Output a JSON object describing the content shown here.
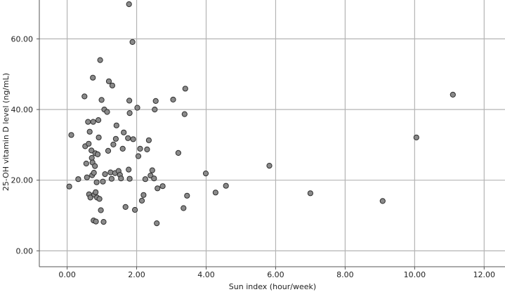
{
  "chart_data": {
    "type": "scatter",
    "xlabel": "Sun index (hour/week)",
    "ylabel": "25-OH vitamin D level (ng/mL)",
    "xlim": [
      -0.8,
      12.6
    ],
    "ylim": [
      -4.5,
      71
    ],
    "x_ticks": [
      0,
      2,
      4,
      6,
      8,
      10,
      12
    ],
    "y_ticks": [
      0,
      20,
      40,
      60
    ],
    "x_tick_labels": [
      "0.00",
      "2.00",
      "4.00",
      "6.00",
      "8.00",
      "10.00",
      "12.00"
    ],
    "y_tick_labels": [
      "0.00",
      "20.00",
      "40.00",
      "60.00"
    ],
    "grid": true,
    "legend": "none",
    "colors": {
      "point_fill": "#8a8a8a",
      "point_stroke": "#2e2e2e",
      "gridline": "#b4b4b4",
      "axis": "#555555"
    },
    "points": [
      [
        0.06,
        18.2
      ],
      [
        0.12,
        32.8
      ],
      [
        0.32,
        20.3
      ],
      [
        0.5,
        43.7
      ],
      [
        0.52,
        29.6
      ],
      [
        0.55,
        24.7
      ],
      [
        0.57,
        20.8
      ],
      [
        0.6,
        36.5
      ],
      [
        0.62,
        30.3
      ],
      [
        0.63,
        16.0
      ],
      [
        0.65,
        33.7
      ],
      [
        0.67,
        15.1
      ],
      [
        0.7,
        28.4
      ],
      [
        0.71,
        26.3
      ],
      [
        0.72,
        21.4
      ],
      [
        0.73,
        25.0
      ],
      [
        0.74,
        49.0
      ],
      [
        0.75,
        36.5
      ],
      [
        0.76,
        8.6
      ],
      [
        0.77,
        22.1
      ],
      [
        0.78,
        15.9
      ],
      [
        0.8,
        24.0
      ],
      [
        0.81,
        27.6
      ],
      [
        0.82,
        16.6
      ],
      [
        0.83,
        8.3
      ],
      [
        0.85,
        19.4
      ],
      [
        0.86,
        15.1
      ],
      [
        0.88,
        27.3
      ],
      [
        0.9,
        37.0
      ],
      [
        0.91,
        32.1
      ],
      [
        0.93,
        14.7
      ],
      [
        0.95,
        54.0
      ],
      [
        0.97,
        11.5
      ],
      [
        0.99,
        42.7
      ],
      [
        1.03,
        19.6
      ],
      [
        1.05,
        8.2
      ],
      [
        1.07,
        40.0
      ],
      [
        1.09,
        21.7
      ],
      [
        1.15,
        39.3
      ],
      [
        1.18,
        28.3
      ],
      [
        1.2,
        48.0
      ],
      [
        1.25,
        22.2
      ],
      [
        1.28,
        20.4
      ],
      [
        1.3,
        46.8
      ],
      [
        1.33,
        30.1
      ],
      [
        1.38,
        22.0
      ],
      [
        1.4,
        31.7
      ],
      [
        1.42,
        35.5
      ],
      [
        1.48,
        22.6
      ],
      [
        1.52,
        21.5
      ],
      [
        1.55,
        20.5
      ],
      [
        1.6,
        28.9
      ],
      [
        1.63,
        33.5
      ],
      [
        1.68,
        12.4
      ],
      [
        1.75,
        31.9
      ],
      [
        1.77,
        23.0
      ],
      [
        1.8,
        20.4
      ],
      [
        1.78,
        69.8
      ],
      [
        1.79,
        42.5
      ],
      [
        1.8,
        39.0
      ],
      [
        1.88,
        59.1
      ],
      [
        1.9,
        31.6
      ],
      [
        1.95,
        11.6
      ],
      [
        2.02,
        40.5
      ],
      [
        2.05,
        26.8
      ],
      [
        2.1,
        28.9
      ],
      [
        2.15,
        14.2
      ],
      [
        2.2,
        15.8
      ],
      [
        2.25,
        20.3
      ],
      [
        2.3,
        28.7
      ],
      [
        2.35,
        31.3
      ],
      [
        2.4,
        21.3
      ],
      [
        2.45,
        22.8
      ],
      [
        2.5,
        20.5
      ],
      [
        2.52,
        40.0
      ],
      [
        2.55,
        42.4
      ],
      [
        2.58,
        7.8
      ],
      [
        2.6,
        17.7
      ],
      [
        2.75,
        18.3
      ],
      [
        3.05,
        42.8
      ],
      [
        3.2,
        27.7
      ],
      [
        3.35,
        12.1
      ],
      [
        3.38,
        38.7
      ],
      [
        3.4,
        45.9
      ],
      [
        3.45,
        15.6
      ],
      [
        3.99,
        21.9
      ],
      [
        4.27,
        16.5
      ],
      [
        4.57,
        18.4
      ],
      [
        5.82,
        24.1
      ],
      [
        7.0,
        16.3
      ],
      [
        9.08,
        14.1
      ],
      [
        10.05,
        32.1
      ],
      [
        11.1,
        44.2
      ]
    ]
  }
}
